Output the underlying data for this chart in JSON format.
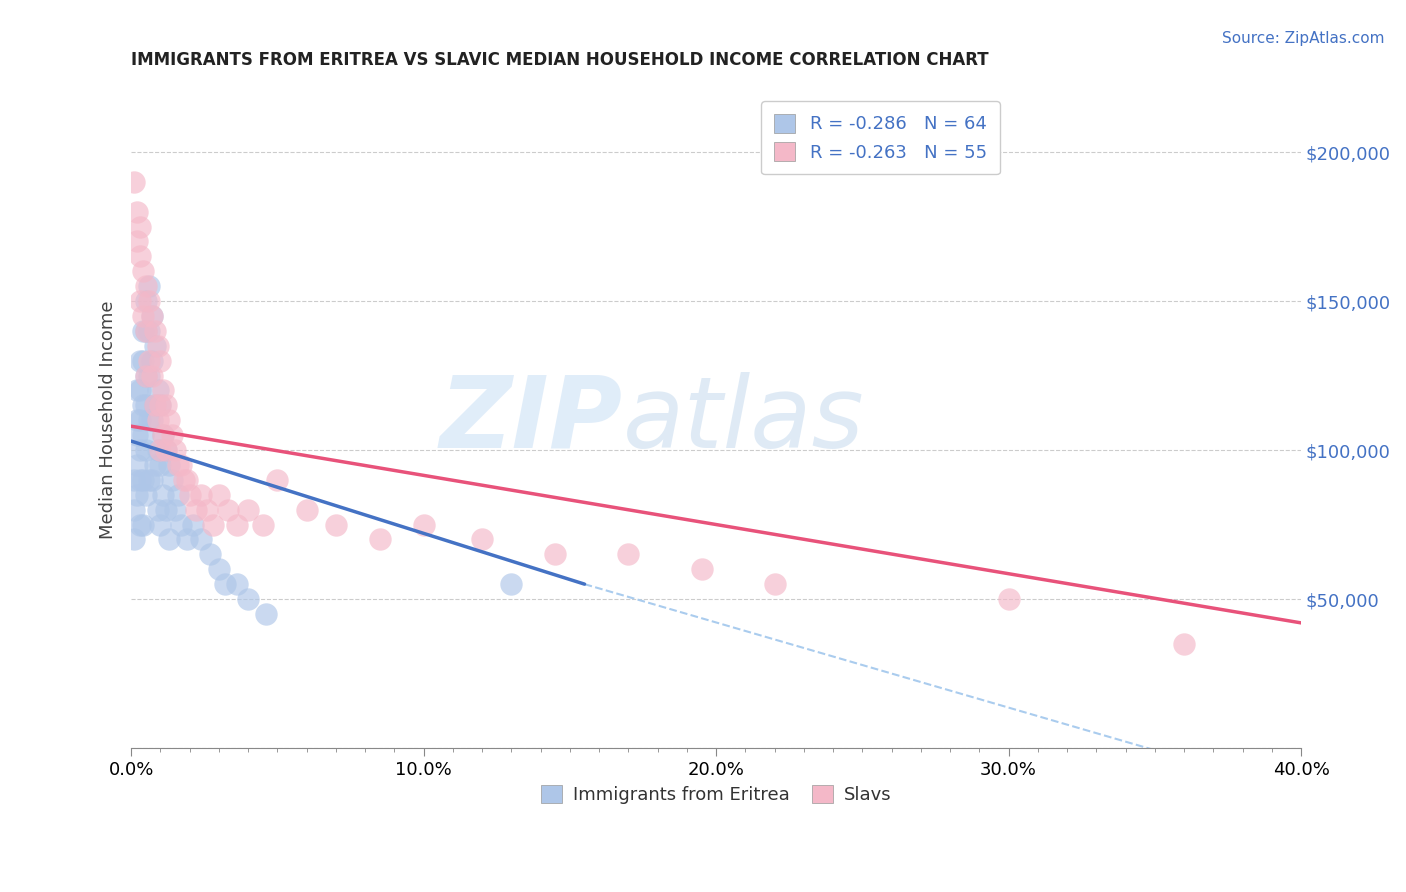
{
  "title": "IMMIGRANTS FROM ERITREA VS SLAVIC MEDIAN HOUSEHOLD INCOME CORRELATION CHART",
  "source": "Source: ZipAtlas.com",
  "ylabel": "Median Household Income",
  "xlim": [
    0.0,
    0.4
  ],
  "ylim": [
    0,
    220000
  ],
  "yticks": [
    0,
    50000,
    100000,
    150000,
    200000
  ],
  "ytick_labels": [
    "",
    "$50,000",
    "$100,000",
    "$150,000",
    "$200,000"
  ],
  "xtick_labels": [
    "0.0%",
    "",
    "",
    "",
    "",
    "10.0%",
    "",
    "",
    "",
    "",
    "20.0%",
    "",
    "",
    "",
    "",
    "30.0%",
    "",
    "",
    "",
    "",
    "40.0%"
  ],
  "xticks": [
    0.0,
    0.02,
    0.04,
    0.06,
    0.08,
    0.1,
    0.12,
    0.14,
    0.16,
    0.18,
    0.2,
    0.22,
    0.24,
    0.26,
    0.28,
    0.3,
    0.32,
    0.34,
    0.36,
    0.38,
    0.4
  ],
  "legend_entries": [
    {
      "label": "R = -0.286   N = 64",
      "color": "#aec6e8"
    },
    {
      "label": "R = -0.263   N = 55",
      "color": "#f4b8c8"
    }
  ],
  "bottom_legend": [
    {
      "label": "Immigrants from Eritrea",
      "color": "#aec6e8"
    },
    {
      "label": "Slavs",
      "color": "#f4b8c8"
    }
  ],
  "watermark_zip": "ZIP",
  "watermark_atlas": "atlas",
  "blue_scatter_color": "#aec6e8",
  "pink_scatter_color": "#f4b8c8",
  "blue_line_color": "#4472c4",
  "pink_line_color": "#e8527a",
  "r_n_color": "#4472c4",
  "blue_scatter": {
    "x": [
      0.001,
      0.001,
      0.001,
      0.002,
      0.002,
      0.002,
      0.002,
      0.002,
      0.003,
      0.003,
      0.003,
      0.003,
      0.003,
      0.003,
      0.004,
      0.004,
      0.004,
      0.004,
      0.004,
      0.004,
      0.005,
      0.005,
      0.005,
      0.005,
      0.005,
      0.005,
      0.006,
      0.006,
      0.006,
      0.006,
      0.006,
      0.007,
      0.007,
      0.007,
      0.007,
      0.008,
      0.008,
      0.008,
      0.009,
      0.009,
      0.009,
      0.01,
      0.01,
      0.01,
      0.011,
      0.011,
      0.012,
      0.012,
      0.013,
      0.013,
      0.014,
      0.015,
      0.016,
      0.017,
      0.019,
      0.021,
      0.024,
      0.027,
      0.03,
      0.032,
      0.036,
      0.04,
      0.046,
      0.13
    ],
    "y": [
      90000,
      80000,
      70000,
      120000,
      110000,
      105000,
      95000,
      85000,
      130000,
      120000,
      110000,
      100000,
      90000,
      75000,
      140000,
      130000,
      115000,
      105000,
      90000,
      75000,
      150000,
      140000,
      125000,
      115000,
      100000,
      85000,
      155000,
      140000,
      125000,
      110000,
      90000,
      145000,
      130000,
      110000,
      90000,
      135000,
      115000,
      95000,
      120000,
      100000,
      80000,
      115000,
      95000,
      75000,
      105000,
      85000,
      100000,
      80000,
      95000,
      70000,
      90000,
      80000,
      85000,
      75000,
      70000,
      75000,
      70000,
      65000,
      60000,
      55000,
      55000,
      50000,
      45000,
      55000
    ]
  },
  "pink_scatter": {
    "x": [
      0.001,
      0.002,
      0.002,
      0.003,
      0.003,
      0.003,
      0.004,
      0.004,
      0.005,
      0.005,
      0.005,
      0.006,
      0.006,
      0.007,
      0.007,
      0.008,
      0.008,
      0.009,
      0.009,
      0.01,
      0.01,
      0.01,
      0.011,
      0.011,
      0.012,
      0.012,
      0.013,
      0.014,
      0.015,
      0.016,
      0.017,
      0.018,
      0.019,
      0.02,
      0.022,
      0.024,
      0.026,
      0.028,
      0.03,
      0.033,
      0.036,
      0.04,
      0.045,
      0.05,
      0.06,
      0.07,
      0.085,
      0.1,
      0.12,
      0.145,
      0.17,
      0.195,
      0.22,
      0.3,
      0.36
    ],
    "y": [
      190000,
      180000,
      170000,
      175000,
      165000,
      150000,
      160000,
      145000,
      155000,
      140000,
      125000,
      150000,
      130000,
      145000,
      125000,
      140000,
      115000,
      135000,
      110000,
      130000,
      115000,
      100000,
      120000,
      105000,
      115000,
      100000,
      110000,
      105000,
      100000,
      95000,
      95000,
      90000,
      90000,
      85000,
      80000,
      85000,
      80000,
      75000,
      85000,
      80000,
      75000,
      80000,
      75000,
      90000,
      80000,
      75000,
      70000,
      75000,
      70000,
      65000,
      65000,
      60000,
      55000,
      50000,
      35000
    ]
  },
  "blue_trendline": {
    "x": [
      0.0,
      0.155
    ],
    "y": [
      103000,
      55000
    ]
  },
  "pink_trendline": {
    "x": [
      0.0,
      0.4
    ],
    "y": [
      108000,
      42000
    ]
  },
  "gray_dashed_line": {
    "x": [
      0.155,
      0.4
    ],
    "y": [
      55000,
      -15000
    ]
  }
}
